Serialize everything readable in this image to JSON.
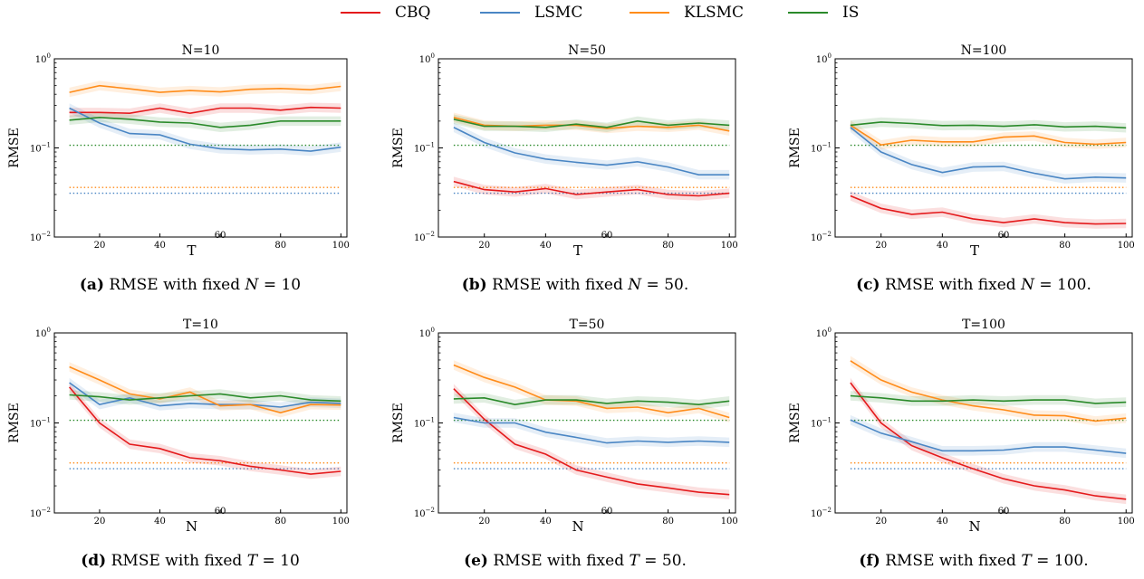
{
  "legend": {
    "entries": [
      {
        "name": "CBQ",
        "color": "#e41a1c"
      },
      {
        "name": "LSMC",
        "color": "#4a86c4"
      },
      {
        "name": "KLSMC",
        "color": "#ff8c1a"
      },
      {
        "name": "IS",
        "color": "#2a8a2a"
      }
    ]
  },
  "captions": [
    {
      "label": "(a)",
      "text": "RMSE with fixed",
      "var": "N",
      "eq": "= 10"
    },
    {
      "label": "(b)",
      "text": "RMSE with fixed",
      "var": "N",
      "eq": "= 50."
    },
    {
      "label": "(c)",
      "text": "RMSE with fixed",
      "var": "N",
      "eq": "= 100."
    },
    {
      "label": "(d)",
      "text": "RMSE with fixed",
      "var": "T",
      "eq": "= 10"
    },
    {
      "label": "(e)",
      "text": "RMSE with fixed",
      "var": "T",
      "eq": "= 50."
    },
    {
      "label": "(f)",
      "text": "RMSE with fixed",
      "var": "T",
      "eq": "= 100."
    }
  ],
  "chart_data": [
    {
      "type": "line",
      "title": "N=10",
      "xlabel": "T",
      "ylabel": "RMSE",
      "yscale": "log",
      "ylim": [
        0.01,
        1
      ],
      "xlim": [
        5,
        102
      ],
      "xticks": [
        "20",
        "40",
        "60",
        "80",
        "100"
      ],
      "yticks": [
        "10^-2",
        "10^-1",
        "10^0"
      ],
      "x": [
        10,
        20,
        30,
        40,
        50,
        60,
        70,
        80,
        90,
        100
      ],
      "series": [
        {
          "name": "CBQ",
          "values": [
            0.25,
            0.25,
            0.245,
            0.28,
            0.245,
            0.28,
            0.28,
            0.265,
            0.285,
            0.28
          ]
        },
        {
          "name": "LSMC",
          "values": [
            0.28,
            0.19,
            0.145,
            0.14,
            0.11,
            0.098,
            0.095,
            0.097,
            0.092,
            0.102
          ]
        },
        {
          "name": "KLSMC",
          "values": [
            0.42,
            0.5,
            0.46,
            0.42,
            0.44,
            0.425,
            0.455,
            0.465,
            0.45,
            0.49
          ]
        },
        {
          "name": "IS",
          "values": [
            0.205,
            0.22,
            0.21,
            0.195,
            0.19,
            0.17,
            0.18,
            0.2,
            0.2,
            0.2
          ]
        }
      ],
      "reference_lines": [
        {
          "series": "IS",
          "value": 0.107
        },
        {
          "series": "KLSMC",
          "value": 0.036
        },
        {
          "series": "LSMC",
          "value": 0.031
        }
      ]
    },
    {
      "type": "line",
      "title": "N=50",
      "xlabel": "T",
      "ylabel": "RMSE",
      "yscale": "log",
      "ylim": [
        0.01,
        1
      ],
      "xlim": [
        5,
        102
      ],
      "xticks": [
        "20",
        "40",
        "60",
        "80",
        "100"
      ],
      "yticks": [
        "10^-2",
        "10^-1",
        "10^0"
      ],
      "x": [
        10,
        20,
        30,
        40,
        50,
        60,
        70,
        80,
        90,
        100
      ],
      "series": [
        {
          "name": "CBQ",
          "values": [
            0.042,
            0.034,
            0.032,
            0.035,
            0.03,
            0.032,
            0.034,
            0.03,
            0.029,
            0.031
          ]
        },
        {
          "name": "LSMC",
          "values": [
            0.17,
            0.115,
            0.088,
            0.075,
            0.069,
            0.064,
            0.07,
            0.061,
            0.05,
            0.05
          ]
        },
        {
          "name": "KLSMC",
          "values": [
            0.22,
            0.18,
            0.175,
            0.18,
            0.18,
            0.165,
            0.175,
            0.17,
            0.18,
            0.155
          ]
        },
        {
          "name": "IS",
          "values": [
            0.21,
            0.175,
            0.175,
            0.17,
            0.185,
            0.17,
            0.2,
            0.18,
            0.19,
            0.18
          ]
        }
      ],
      "reference_lines": [
        {
          "series": "IS",
          "value": 0.107
        },
        {
          "series": "KLSMC",
          "value": 0.036
        },
        {
          "series": "LSMC",
          "value": 0.031
        }
      ]
    },
    {
      "type": "line",
      "title": "N=100",
      "xlabel": "T",
      "ylabel": "RMSE",
      "yscale": "log",
      "ylim": [
        0.01,
        1
      ],
      "xlim": [
        5,
        102
      ],
      "xticks": [
        "20",
        "40",
        "60",
        "80",
        "100"
      ],
      "yticks": [
        "10^-2",
        "10^-1",
        "10^0"
      ],
      "x": [
        10,
        20,
        30,
        40,
        50,
        60,
        70,
        80,
        90,
        100
      ],
      "series": [
        {
          "name": "CBQ",
          "values": [
            0.029,
            0.021,
            0.018,
            0.019,
            0.016,
            0.0145,
            0.016,
            0.0145,
            0.014,
            0.0142
          ]
        },
        {
          "name": "LSMC",
          "values": [
            0.17,
            0.09,
            0.065,
            0.053,
            0.061,
            0.062,
            0.052,
            0.045,
            0.047,
            0.046
          ]
        },
        {
          "name": "KLSMC",
          "values": [
            0.18,
            0.108,
            0.122,
            0.117,
            0.117,
            0.132,
            0.136,
            0.115,
            0.11,
            0.115
          ]
        },
        {
          "name": "IS",
          "values": [
            0.18,
            0.195,
            0.188,
            0.178,
            0.18,
            0.175,
            0.182,
            0.172,
            0.175,
            0.168
          ]
        }
      ],
      "reference_lines": [
        {
          "series": "IS",
          "value": 0.107
        },
        {
          "series": "KLSMC",
          "value": 0.036
        },
        {
          "series": "LSMC",
          "value": 0.031
        }
      ]
    },
    {
      "type": "line",
      "title": "T=10",
      "xlabel": "N",
      "ylabel": "RMSE",
      "yscale": "log",
      "ylim": [
        0.01,
        1
      ],
      "xlim": [
        5,
        102
      ],
      "xticks": [
        "20",
        "40",
        "60",
        "80",
        "100"
      ],
      "yticks": [
        "10^-2",
        "10^-1",
        "10^0"
      ],
      "x": [
        10,
        20,
        30,
        40,
        50,
        60,
        70,
        80,
        90,
        100
      ],
      "series": [
        {
          "name": "CBQ",
          "values": [
            0.25,
            0.1,
            0.058,
            0.052,
            0.041,
            0.038,
            0.033,
            0.03,
            0.027,
            0.029
          ]
        },
        {
          "name": "LSMC",
          "values": [
            0.28,
            0.16,
            0.19,
            0.155,
            0.165,
            0.16,
            0.16,
            0.15,
            0.17,
            0.165
          ]
        },
        {
          "name": "KLSMC",
          "values": [
            0.42,
            0.3,
            0.21,
            0.185,
            0.22,
            0.155,
            0.16,
            0.13,
            0.16,
            0.158
          ]
        },
        {
          "name": "IS",
          "values": [
            0.205,
            0.195,
            0.18,
            0.19,
            0.2,
            0.21,
            0.19,
            0.2,
            0.18,
            0.175
          ]
        }
      ],
      "reference_lines": [
        {
          "series": "IS",
          "value": 0.107
        },
        {
          "series": "KLSMC",
          "value": 0.036
        },
        {
          "series": "LSMC",
          "value": 0.031
        }
      ]
    },
    {
      "type": "line",
      "title": "T=50",
      "xlabel": "N",
      "ylabel": "RMSE",
      "yscale": "log",
      "ylim": [
        0.01,
        1
      ],
      "xlim": [
        5,
        102
      ],
      "xticks": [
        "20",
        "40",
        "60",
        "80",
        "100"
      ],
      "yticks": [
        "10^-2",
        "10^-1",
        "10^0"
      ],
      "x": [
        10,
        20,
        30,
        40,
        50,
        60,
        70,
        80,
        90,
        100
      ],
      "series": [
        {
          "name": "CBQ",
          "values": [
            0.24,
            0.11,
            0.058,
            0.045,
            0.03,
            0.025,
            0.021,
            0.019,
            0.017,
            0.016
          ]
        },
        {
          "name": "LSMC",
          "values": [
            0.115,
            0.1,
            0.1,
            0.079,
            0.069,
            0.06,
            0.063,
            0.061,
            0.063,
            0.061
          ]
        },
        {
          "name": "KLSMC",
          "values": [
            0.44,
            0.32,
            0.25,
            0.18,
            0.175,
            0.145,
            0.15,
            0.13,
            0.145,
            0.115
          ]
        },
        {
          "name": "IS",
          "values": [
            0.185,
            0.19,
            0.16,
            0.18,
            0.18,
            0.165,
            0.175,
            0.17,
            0.16,
            0.175
          ]
        }
      ],
      "reference_lines": [
        {
          "series": "IS",
          "value": 0.107
        },
        {
          "series": "KLSMC",
          "value": 0.036
        },
        {
          "series": "LSMC",
          "value": 0.031
        }
      ]
    },
    {
      "type": "line",
      "title": "T=100",
      "xlabel": "N",
      "ylabel": "RMSE",
      "yscale": "log",
      "ylim": [
        0.01,
        1
      ],
      "xlim": [
        5,
        102
      ],
      "xticks": [
        "20",
        "40",
        "60",
        "80",
        "100"
      ],
      "yticks": [
        "10^-2",
        "10^-1",
        "10^0"
      ],
      "x": [
        10,
        20,
        30,
        40,
        50,
        60,
        70,
        80,
        90,
        100
      ],
      "series": [
        {
          "name": "CBQ",
          "values": [
            0.28,
            0.1,
            0.056,
            0.041,
            0.031,
            0.024,
            0.02,
            0.018,
            0.0155,
            0.0142
          ]
        },
        {
          "name": "LSMC",
          "values": [
            0.108,
            0.077,
            0.062,
            0.049,
            0.049,
            0.05,
            0.054,
            0.054,
            0.05,
            0.046
          ]
        },
        {
          "name": "KLSMC",
          "values": [
            0.49,
            0.3,
            0.22,
            0.18,
            0.155,
            0.14,
            0.122,
            0.12,
            0.105,
            0.113
          ]
        },
        {
          "name": "IS",
          "values": [
            0.2,
            0.19,
            0.175,
            0.175,
            0.18,
            0.175,
            0.18,
            0.18,
            0.165,
            0.17
          ]
        }
      ],
      "reference_lines": [
        {
          "series": "IS",
          "value": 0.107
        },
        {
          "series": "KLSMC",
          "value": 0.036
        },
        {
          "series": "LSMC",
          "value": 0.031
        }
      ]
    }
  ]
}
